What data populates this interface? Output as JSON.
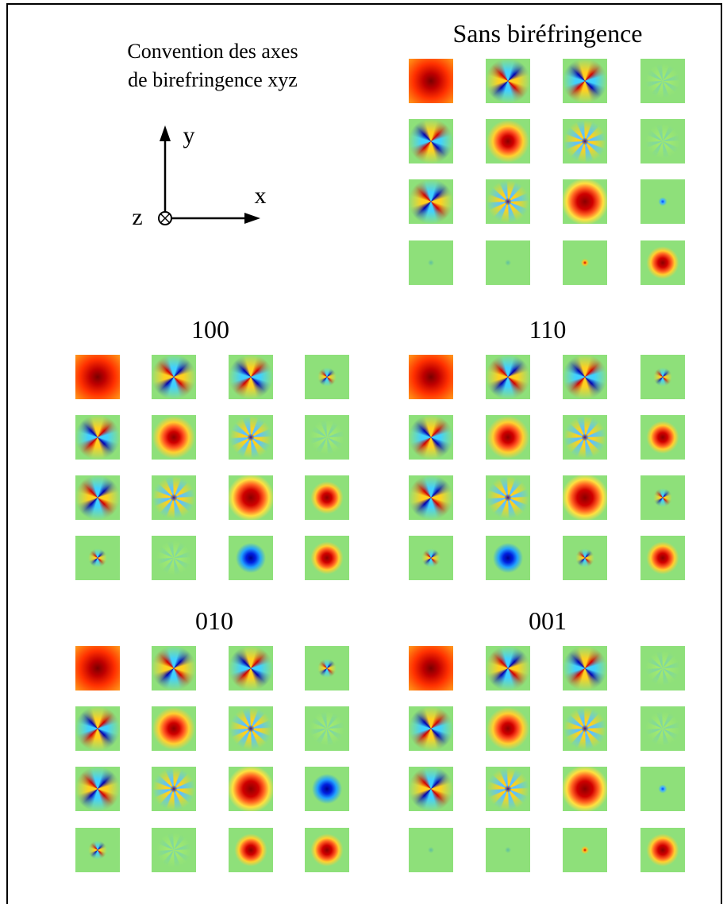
{
  "legend": {
    "line1": "Convention des axes",
    "line2": "de birefringence xyz",
    "axes": {
      "y": "y",
      "x": "x",
      "z": "z"
    }
  },
  "panels": [
    {
      "title": "Sans biréfringence"
    },
    {
      "title": "100"
    },
    {
      "title": "110"
    },
    {
      "title": "010"
    },
    {
      "title": "001"
    }
  ]
}
